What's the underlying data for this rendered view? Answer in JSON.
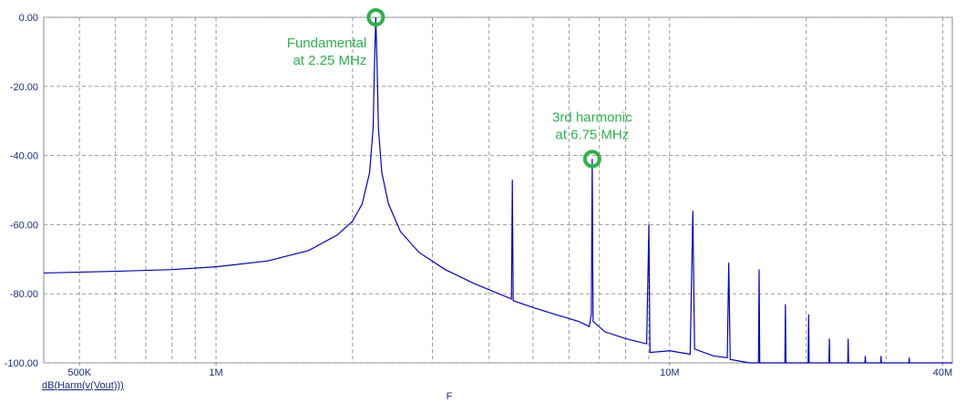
{
  "chart_data": {
    "type": "line",
    "x_label": "F",
    "y_label": "dB(Harm(v(Vout)))",
    "x_log": true,
    "grid": true,
    "minor_grid": true,
    "xlim": [
      417000,
      42000000
    ],
    "xticks": [
      {
        "value": 500000,
        "label": "500K"
      },
      {
        "value": 1000000,
        "label": "1M"
      },
      {
        "value": 10000000,
        "label": "10M"
      },
      {
        "value": 40000000,
        "label": "40M"
      }
    ],
    "ylim": [
      -100,
      0
    ],
    "yticks": [
      {
        "value": 0,
        "label": "0.00"
      },
      {
        "value": -20,
        "label": "-20.00"
      },
      {
        "value": -40,
        "label": "-40.00"
      },
      {
        "value": -60,
        "label": "-60.00"
      },
      {
        "value": -80,
        "label": "-80.00"
      },
      {
        "value": -100,
        "label": "-100.00"
      }
    ],
    "series": [
      {
        "color": "#0000c8",
        "x": [
          417000,
          600000,
          800000,
          1000000,
          1300000,
          1600000,
          1850000,
          2000000,
          2100000,
          2180000,
          2220000,
          2235000,
          2250000,
          2265000,
          2280000,
          2320000,
          2400000,
          2550000,
          2800000,
          3200000,
          3700000,
          4200000,
          4480000,
          4500000,
          4520000,
          5000000,
          5600000,
          6300000,
          6650000,
          6720000,
          6750000,
          6780000,
          7200000,
          8000000,
          8900000,
          9000000,
          9050000,
          10000000,
          11100000,
          11250000,
          11350000,
          12500000,
          13400000,
          13500000,
          13600000,
          15000000,
          15700000,
          15750000,
          15800000,
          17950000,
          18000000,
          18050000,
          20200000,
          20250000,
          20300000,
          22450000,
          22500000,
          22550000,
          24700000,
          24750000,
          24800000,
          26950000,
          27000000,
          27050000,
          29200000,
          29250000,
          29300000,
          33700000,
          33750000,
          33800000,
          42000000
        ],
        "values": [
          -74,
          -73.5,
          -73,
          -72.2,
          -70.5,
          -67.5,
          -63,
          -59,
          -54,
          -45,
          -32,
          -14,
          0,
          -14,
          -32,
          -45,
          -54,
          -62,
          -68,
          -73,
          -77,
          -80,
          -81.5,
          -47,
          -82,
          -84,
          -86,
          -88,
          -89.5,
          -86,
          -41,
          -88,
          -91,
          -93,
          -94.5,
          -60,
          -97,
          -96.5,
          -97.5,
          -56,
          -96,
          -98,
          -98.5,
          -71,
          -99,
          -100,
          -100,
          -73,
          -100,
          -100,
          -83,
          -100,
          -100,
          -86,
          -100,
          -100,
          -93,
          -100,
          -100,
          -93,
          -100,
          -100,
          -98,
          -100,
          -100,
          -98,
          -100,
          -100,
          -98.5,
          -100,
          -100
        ]
      }
    ],
    "annotations": [
      {
        "lines": [
          "Fundamental",
          "at 2.25 MHz"
        ],
        "x": 2250000,
        "y": 0,
        "color": "#2db34a"
      },
      {
        "lines": [
          "3rd harmonic",
          "at 6.75 MHz"
        ],
        "x": 6750000,
        "y": -41,
        "color": "#2db34a"
      }
    ]
  }
}
